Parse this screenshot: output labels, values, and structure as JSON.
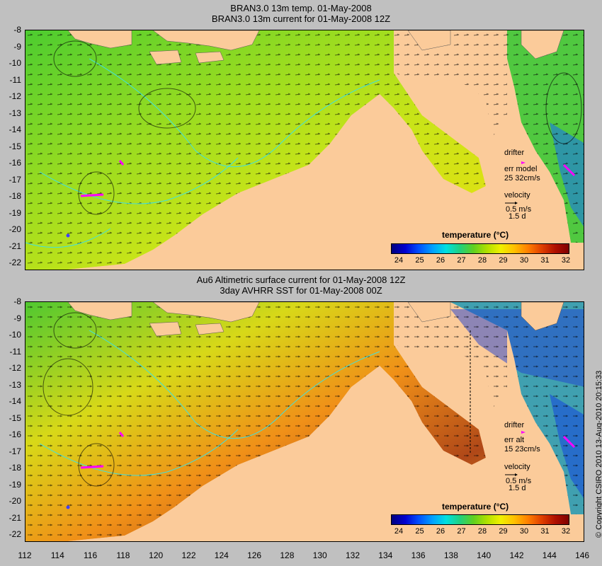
{
  "top_panel": {
    "title_line1": "BRAN3.0 13m temp. 01-May-2008",
    "title_line2": "BRAN3.0 13m current for 01-May-2008 12Z",
    "legend_drifter": "drifter",
    "legend_err": "err model",
    "legend_err_values": "25 32cm/s",
    "legend_velocity": "velocity",
    "legend_speed": "0.5 m/s",
    "legend_time": "1.5 d"
  },
  "bottom_panel": {
    "title_line1": "Au6 Altimetric surface current for 01-May-2008 12Z",
    "title_line2": "3day AVHRR SST for 01-May-2008 00Z",
    "legend_drifter": "drifter",
    "legend_err": "err alt",
    "legend_err_values": "15 23cm/s",
    "legend_velocity": "velocity",
    "legend_speed": "0.5 m/s",
    "legend_time": "1.5 d"
  },
  "colorbar": {
    "title": "temperature (°C)",
    "ticks": [
      "24",
      "25",
      "26",
      "27",
      "28",
      "29",
      "30",
      "31",
      "32"
    ]
  },
  "y_ticks": [
    "-8",
    "-9",
    "-10",
    "-11",
    "-12",
    "-13",
    "-14",
    "-15",
    "-16",
    "-17",
    "-18",
    "-19",
    "-20",
    "-21",
    "-22"
  ],
  "x_ticks": [
    "112",
    "114",
    "116",
    "118",
    "120",
    "122",
    "124",
    "126",
    "128",
    "130",
    "132",
    "134",
    "136",
    "138",
    "140",
    "142",
    "144",
    "146"
  ],
  "copyright": "© Copyright CSIRO 2010    13-Aug-2010 20:15:33",
  "colors": {
    "land": "#fbcb9a",
    "background": "#c0c0c0",
    "drifter": "#ff00ff",
    "contour": "#40e0e0"
  }
}
